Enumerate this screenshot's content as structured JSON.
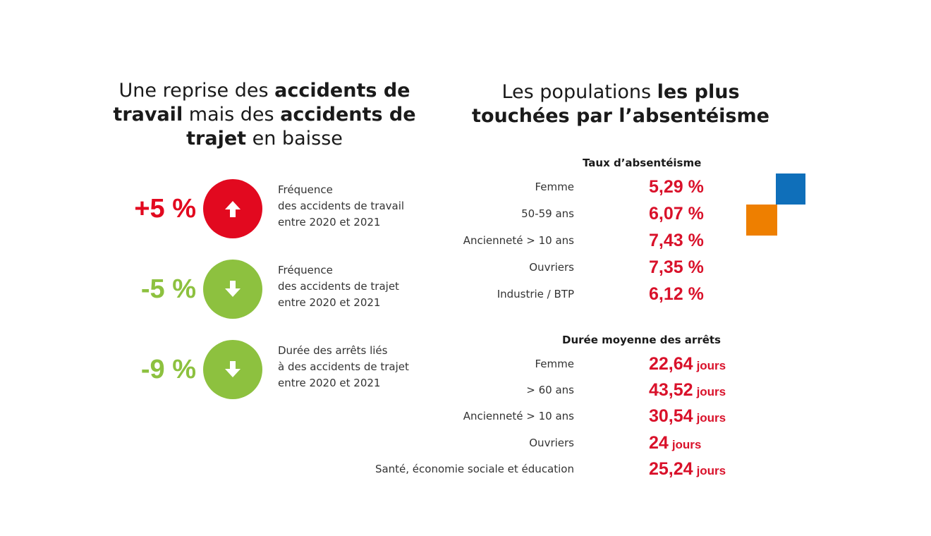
{
  "colors": {
    "red": "#e2091f",
    "green": "#8dc13f",
    "value_red": "#d9112a",
    "blue": "#0f6fba",
    "orange": "#ee7f00"
  },
  "left": {
    "title_parts": [
      "Une reprise des ",
      "accidents de travail",
      " mais des ",
      "accidents de trajet",
      " en baisse"
    ],
    "stats": [
      {
        "value": "+5 %",
        "direction": "up",
        "icon": "arrow-up-icon",
        "color": "#e2091f",
        "desc": [
          "Fréquence",
          "des accidents de travail",
          "entre 2020 et 2021"
        ]
      },
      {
        "value": "-5 %",
        "direction": "down",
        "icon": "arrow-down-icon",
        "color": "#8dc13f",
        "desc": [
          "Fréquence",
          "des accidents de trajet",
          "entre 2020 et 2021"
        ]
      },
      {
        "value": "-9 %",
        "direction": "down",
        "icon": "arrow-down-icon",
        "color": "#8dc13f",
        "desc": [
          "Durée des arrêts liés",
          "à des accidents de trajet",
          "entre 2020 et 2021"
        ]
      }
    ]
  },
  "right": {
    "title_parts": [
      "Les populations ",
      "les plus touchées par l’absentéisme"
    ],
    "absenteeism": {
      "title": "Taux d’absentéisme",
      "rows": [
        {
          "label": "Femme",
          "value": "5,29 %"
        },
        {
          "label": "50-59 ans",
          "value": "6,07 %"
        },
        {
          "label": "Ancienneté > 10 ans",
          "value": "7,43 %"
        },
        {
          "label": "Ouvriers",
          "value": "7,35 %"
        },
        {
          "label": "Industrie / BTP",
          "value": "6,12 %"
        }
      ]
    },
    "duration": {
      "title": "Durée moyenne des arrêts",
      "rows": [
        {
          "label": "Femme",
          "value": "22,64",
          "unit": "jours"
        },
        {
          "label": "> 60 ans",
          "value": "43,52",
          "unit": "jours"
        },
        {
          "label": "Ancienneté > 10 ans",
          "value": "30,54",
          "unit": "jours"
        },
        {
          "label": "Ouvriers",
          "value": "24",
          "unit": "jours"
        },
        {
          "label": "Santé, économie sociale et éducation",
          "value": "25,24",
          "unit": "jours"
        }
      ]
    }
  }
}
